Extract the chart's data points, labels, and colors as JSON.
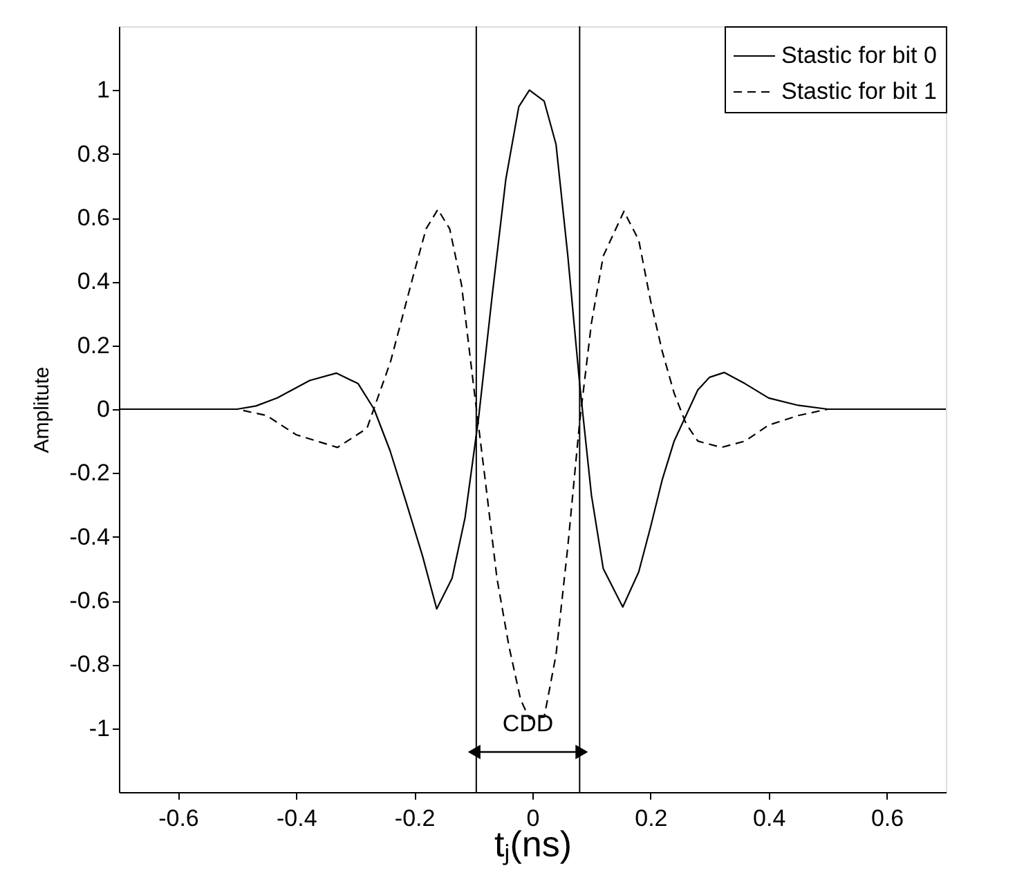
{
  "chart_data": {
    "type": "line",
    "xlabel": "tⱼ(ns)",
    "ylabel": "Amplitute",
    "xlim": [
      -0.7,
      0.7
    ],
    "ylim": [
      -1.2,
      1.2
    ],
    "xticks": [
      -0.6,
      -0.4,
      -0.2,
      0,
      0.2,
      0.4,
      0.6
    ],
    "yticks": [
      -1,
      -0.8,
      -0.6,
      -0.4,
      -0.2,
      0,
      0.2,
      0.4,
      0.6,
      0.8,
      1
    ],
    "legend": "top right",
    "marker": "none",
    "series": [
      {
        "name": "Stastic for bit 0",
        "color": "#000000",
        "line_style": "solid",
        "x": [
          -0.7,
          -0.5,
          -0.468,
          -0.432,
          -0.377,
          -0.332,
          -0.295,
          -0.268,
          -0.241,
          -0.214,
          -0.186,
          -0.162,
          -0.136,
          -0.114,
          -0.091,
          -0.068,
          -0.045,
          -0.023,
          -0.005,
          0.02,
          0.04,
          0.06,
          0.08,
          0.1,
          0.12,
          0.153,
          0.18,
          0.2,
          0.22,
          0.24,
          0.26,
          0.28,
          0.3,
          0.325,
          0.36,
          0.4,
          0.45,
          0.5,
          0.7
        ],
        "values": [
          0,
          0,
          0.01,
          0.035,
          0.09,
          0.113,
          0.08,
          0,
          -0.13,
          -0.29,
          -0.46,
          -0.626,
          -0.53,
          -0.34,
          -0.026,
          0.357,
          0.72,
          0.948,
          1.0,
          0.965,
          0.83,
          0.48,
          0.08,
          -0.27,
          -0.5,
          -0.62,
          -0.51,
          -0.37,
          -0.22,
          -0.1,
          -0.02,
          0.06,
          0.1,
          0.115,
          0.08,
          0.035,
          0.012,
          0,
          0
        ]
      },
      {
        "name": "Stastic for bit 1",
        "color": "#000000",
        "line_style": "dashed",
        "x": [
          -0.7,
          -0.5,
          -0.45,
          -0.4,
          -0.33,
          -0.28,
          -0.26,
          -0.24,
          -0.22,
          -0.2,
          -0.18,
          -0.16,
          -0.14,
          -0.12,
          -0.1,
          -0.08,
          -0.06,
          -0.04,
          -0.02,
          -0.005,
          0.02,
          0.04,
          0.06,
          0.08,
          0.1,
          0.12,
          0.155,
          0.18,
          0.2,
          0.22,
          0.24,
          0.26,
          0.28,
          0.32,
          0.36,
          0.4,
          0.45,
          0.5,
          0.7
        ],
        "values": [
          0,
          0,
          -0.02,
          -0.08,
          -0.12,
          -0.06,
          0.045,
          0.15,
          0.29,
          0.43,
          0.565,
          0.626,
          0.565,
          0.39,
          0.08,
          -0.22,
          -0.53,
          -0.74,
          -0.91,
          -0.97,
          -0.965,
          -0.77,
          -0.43,
          -0.04,
          0.27,
          0.48,
          0.62,
          0.53,
          0.34,
          0.18,
          0.05,
          -0.045,
          -0.1,
          -0.12,
          -0.1,
          -0.05,
          -0.02,
          0,
          0
        ]
      }
    ],
    "ref_lines": [
      {
        "axis": "x",
        "value": -0.095,
        "color": "#000000"
      },
      {
        "axis": "x",
        "value": 0.08,
        "color": "#000000"
      }
    ],
    "annotations": [
      "CDD"
    ]
  }
}
